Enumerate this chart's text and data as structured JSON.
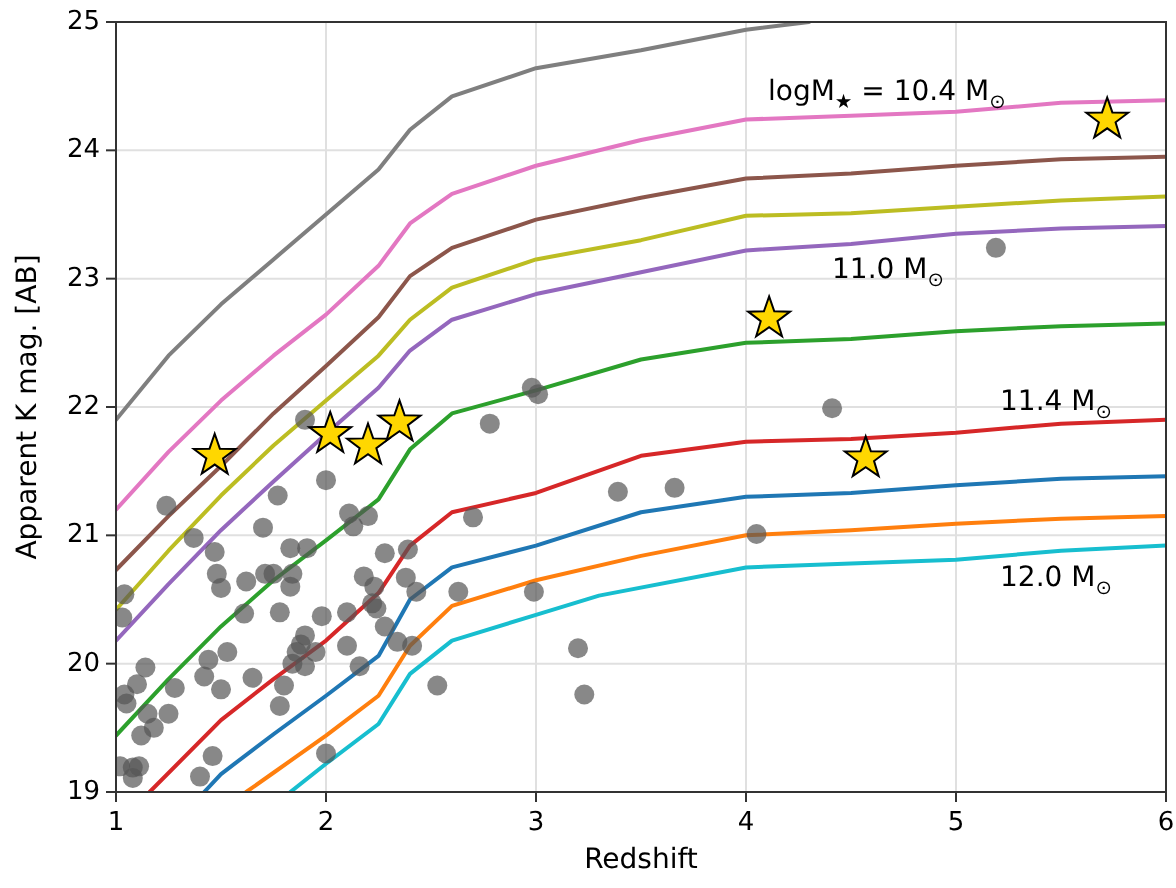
{
  "chart_data": {
    "type": "line",
    "xlabel": "Redshift",
    "ylabel": "Apparent K mag. [AB]",
    "xlim": [
      1,
      6
    ],
    "ylim": [
      19,
      25
    ],
    "xticks": [
      1,
      2,
      3,
      4,
      5,
      6
    ],
    "yticks": [
      19,
      20,
      21,
      22,
      23,
      24,
      25
    ],
    "grid": true,
    "line_style": "solid",
    "marker": "none",
    "series": [
      {
        "color": "#7f7f7f",
        "x": [
          1,
          1.25,
          1.5,
          1.75,
          2,
          2.25,
          2.4,
          2.6,
          3,
          3.5,
          4,
          4.3
        ],
        "values": [
          21.9,
          22.4,
          22.8,
          23.15,
          23.5,
          23.85,
          24.16,
          24.42,
          24.64,
          24.78,
          24.94,
          25.0
        ]
      },
      {
        "color": "#e377c2",
        "x": [
          1,
          1.25,
          1.5,
          1.75,
          2,
          2.25,
          2.4,
          2.6,
          3,
          3.5,
          4,
          4.5,
          5,
          5.5,
          6
        ],
        "values": [
          21.2,
          21.65,
          22.05,
          22.4,
          22.72,
          23.1,
          23.43,
          23.66,
          23.88,
          24.08,
          24.24,
          24.27,
          24.3,
          24.37,
          24.39
        ]
      },
      {
        "color": "#8c564b",
        "x": [
          1,
          1.25,
          1.5,
          1.75,
          2,
          2.25,
          2.4,
          2.6,
          3,
          3.5,
          4,
          4.5,
          5,
          5.5,
          6
        ],
        "values": [
          20.73,
          21.15,
          21.54,
          21.95,
          22.32,
          22.7,
          23.02,
          23.24,
          23.46,
          23.63,
          23.78,
          23.82,
          23.88,
          23.93,
          23.95
        ]
      },
      {
        "color": "#bcbd22",
        "x": [
          1,
          1.25,
          1.5,
          1.75,
          2,
          2.25,
          2.4,
          2.6,
          3,
          3.5,
          4,
          4.5,
          5,
          5.5,
          6
        ],
        "values": [
          20.42,
          20.88,
          21.31,
          21.7,
          22.05,
          22.4,
          22.68,
          22.93,
          23.15,
          23.3,
          23.49,
          23.51,
          23.56,
          23.61,
          23.64
        ]
      },
      {
        "color": "#9467bd",
        "x": [
          1,
          1.25,
          1.5,
          1.75,
          2,
          2.25,
          2.4,
          2.6,
          3,
          3.5,
          4,
          4.5,
          5,
          5.5,
          6
        ],
        "values": [
          20.18,
          20.62,
          21.04,
          21.42,
          21.79,
          22.15,
          22.44,
          22.68,
          22.88,
          23.05,
          23.22,
          23.27,
          23.35,
          23.39,
          23.41
        ]
      },
      {
        "color": "#2ca02c",
        "x": [
          1,
          1.25,
          1.5,
          1.75,
          2,
          2.25,
          2.4,
          2.6,
          3,
          3.5,
          4,
          4.5,
          5,
          5.5,
          6
        ],
        "values": [
          19.44,
          19.88,
          20.29,
          20.65,
          20.96,
          21.28,
          21.67,
          21.95,
          22.13,
          22.37,
          22.5,
          22.53,
          22.59,
          22.63,
          22.65
        ]
      },
      {
        "color": "#d62728",
        "x": [
          1.16,
          1.5,
          1.75,
          2,
          2.25,
          2.4,
          2.6,
          3,
          3.5,
          4,
          4.5,
          5,
          5.5,
          6
        ],
        "values": [
          19.0,
          19.56,
          19.88,
          20.18,
          20.55,
          20.92,
          21.18,
          21.33,
          21.62,
          21.73,
          21.75,
          21.8,
          21.87,
          21.9
        ]
      },
      {
        "color": "#1f77b4",
        "x": [
          1.42,
          1.5,
          1.75,
          2,
          2.25,
          2.4,
          2.6,
          3,
          3.5,
          4,
          4.5,
          5,
          5.5,
          6
        ],
        "values": [
          19.0,
          19.14,
          19.45,
          19.75,
          20.06,
          20.5,
          20.75,
          20.92,
          21.18,
          21.3,
          21.33,
          21.39,
          21.44,
          21.46
        ]
      },
      {
        "color": "#ff7f0e",
        "x": [
          1.62,
          1.75,
          2,
          2.25,
          2.4,
          2.6,
          3,
          3.5,
          4,
          4.5,
          5,
          5.5,
          6
        ],
        "values": [
          19.0,
          19.15,
          19.44,
          19.75,
          20.14,
          20.45,
          20.65,
          20.84,
          21.0,
          21.04,
          21.09,
          21.13,
          21.15
        ]
      },
      {
        "color": "#17becf",
        "x": [
          1.83,
          2,
          2.25,
          2.4,
          2.6,
          3,
          3.3,
          4,
          4.5,
          5,
          5.5,
          6
        ],
        "values": [
          19.0,
          19.22,
          19.53,
          19.92,
          20.18,
          20.38,
          20.53,
          20.75,
          20.78,
          20.81,
          20.88,
          20.92
        ]
      },
      {
        "type": "scatter",
        "marker": "circle",
        "color": "#555555",
        "x": [
          1.9,
          2.0,
          1.77,
          1.24,
          1.37,
          1.47,
          1.7,
          1.83,
          1.91,
          1.48,
          1.5,
          1.62,
          1.71,
          1.75,
          1.84,
          1.83,
          1.04,
          1.03,
          1.61,
          1.78,
          1.98,
          1.53,
          1.44,
          1.9,
          1.88,
          1.86,
          1.95,
          1.9,
          1.84,
          1.8,
          1.78,
          1.65,
          1.5,
          1.42,
          1.14,
          1.1,
          1.04,
          1.05,
          1.28,
          1.15,
          1.25,
          1.12,
          1.18,
          1.46,
          1.4,
          1.02,
          1.08,
          1.11,
          1.08,
          2.98,
          3.01,
          2.78,
          2.11,
          2.2,
          2.13,
          2.7,
          3.39,
          2.28,
          2.39,
          2.18,
          2.38,
          2.23,
          2.22,
          2.24,
          2.43,
          2.63,
          2.99,
          2.1,
          2.28,
          2.1,
          2.34,
          2.41,
          2.16,
          2.53,
          3.2,
          3.23,
          2.0,
          5.19,
          4.41,
          3.66,
          4.05
        ],
        "values": [
          21.9,
          21.43,
          21.31,
          21.23,
          20.98,
          20.87,
          21.06,
          20.9,
          20.9,
          20.7,
          20.59,
          20.64,
          20.7,
          20.7,
          20.7,
          20.6,
          20.54,
          20.36,
          20.39,
          20.4,
          20.37,
          20.09,
          20.03,
          20.22,
          20.15,
          20.09,
          20.09,
          19.98,
          20.0,
          19.83,
          19.67,
          19.89,
          19.8,
          19.9,
          19.97,
          19.84,
          19.76,
          19.69,
          19.81,
          19.61,
          19.61,
          19.44,
          19.5,
          19.28,
          19.12,
          19.2,
          19.19,
          19.2,
          19.11,
          22.15,
          22.1,
          21.87,
          21.17,
          21.15,
          21.07,
          21.14,
          21.34,
          20.86,
          20.89,
          20.68,
          20.67,
          20.6,
          20.47,
          20.43,
          20.56,
          20.56,
          20.56,
          20.4,
          20.29,
          20.14,
          20.17,
          20.14,
          19.98,
          19.83,
          20.12,
          19.76,
          19.3,
          23.24,
          21.99,
          21.37,
          21.01
        ]
      },
      {
        "type": "scatter",
        "marker": "star",
        "color": "#ffd700",
        "x": [
          1.47,
          2.02,
          2.2,
          2.35,
          4.11,
          4.57,
          5.72
        ],
        "values": [
          21.62,
          21.79,
          21.7,
          21.88,
          22.69,
          21.6,
          24.24
        ]
      }
    ],
    "annotations": [
      "logM$_{★}$ = 10.4 M$_{⊙}$",
      "11.0 M$_{⊙}$",
      "11.4 M$_{⊙}$",
      "12.0 M$_{⊙}$"
    ]
  }
}
